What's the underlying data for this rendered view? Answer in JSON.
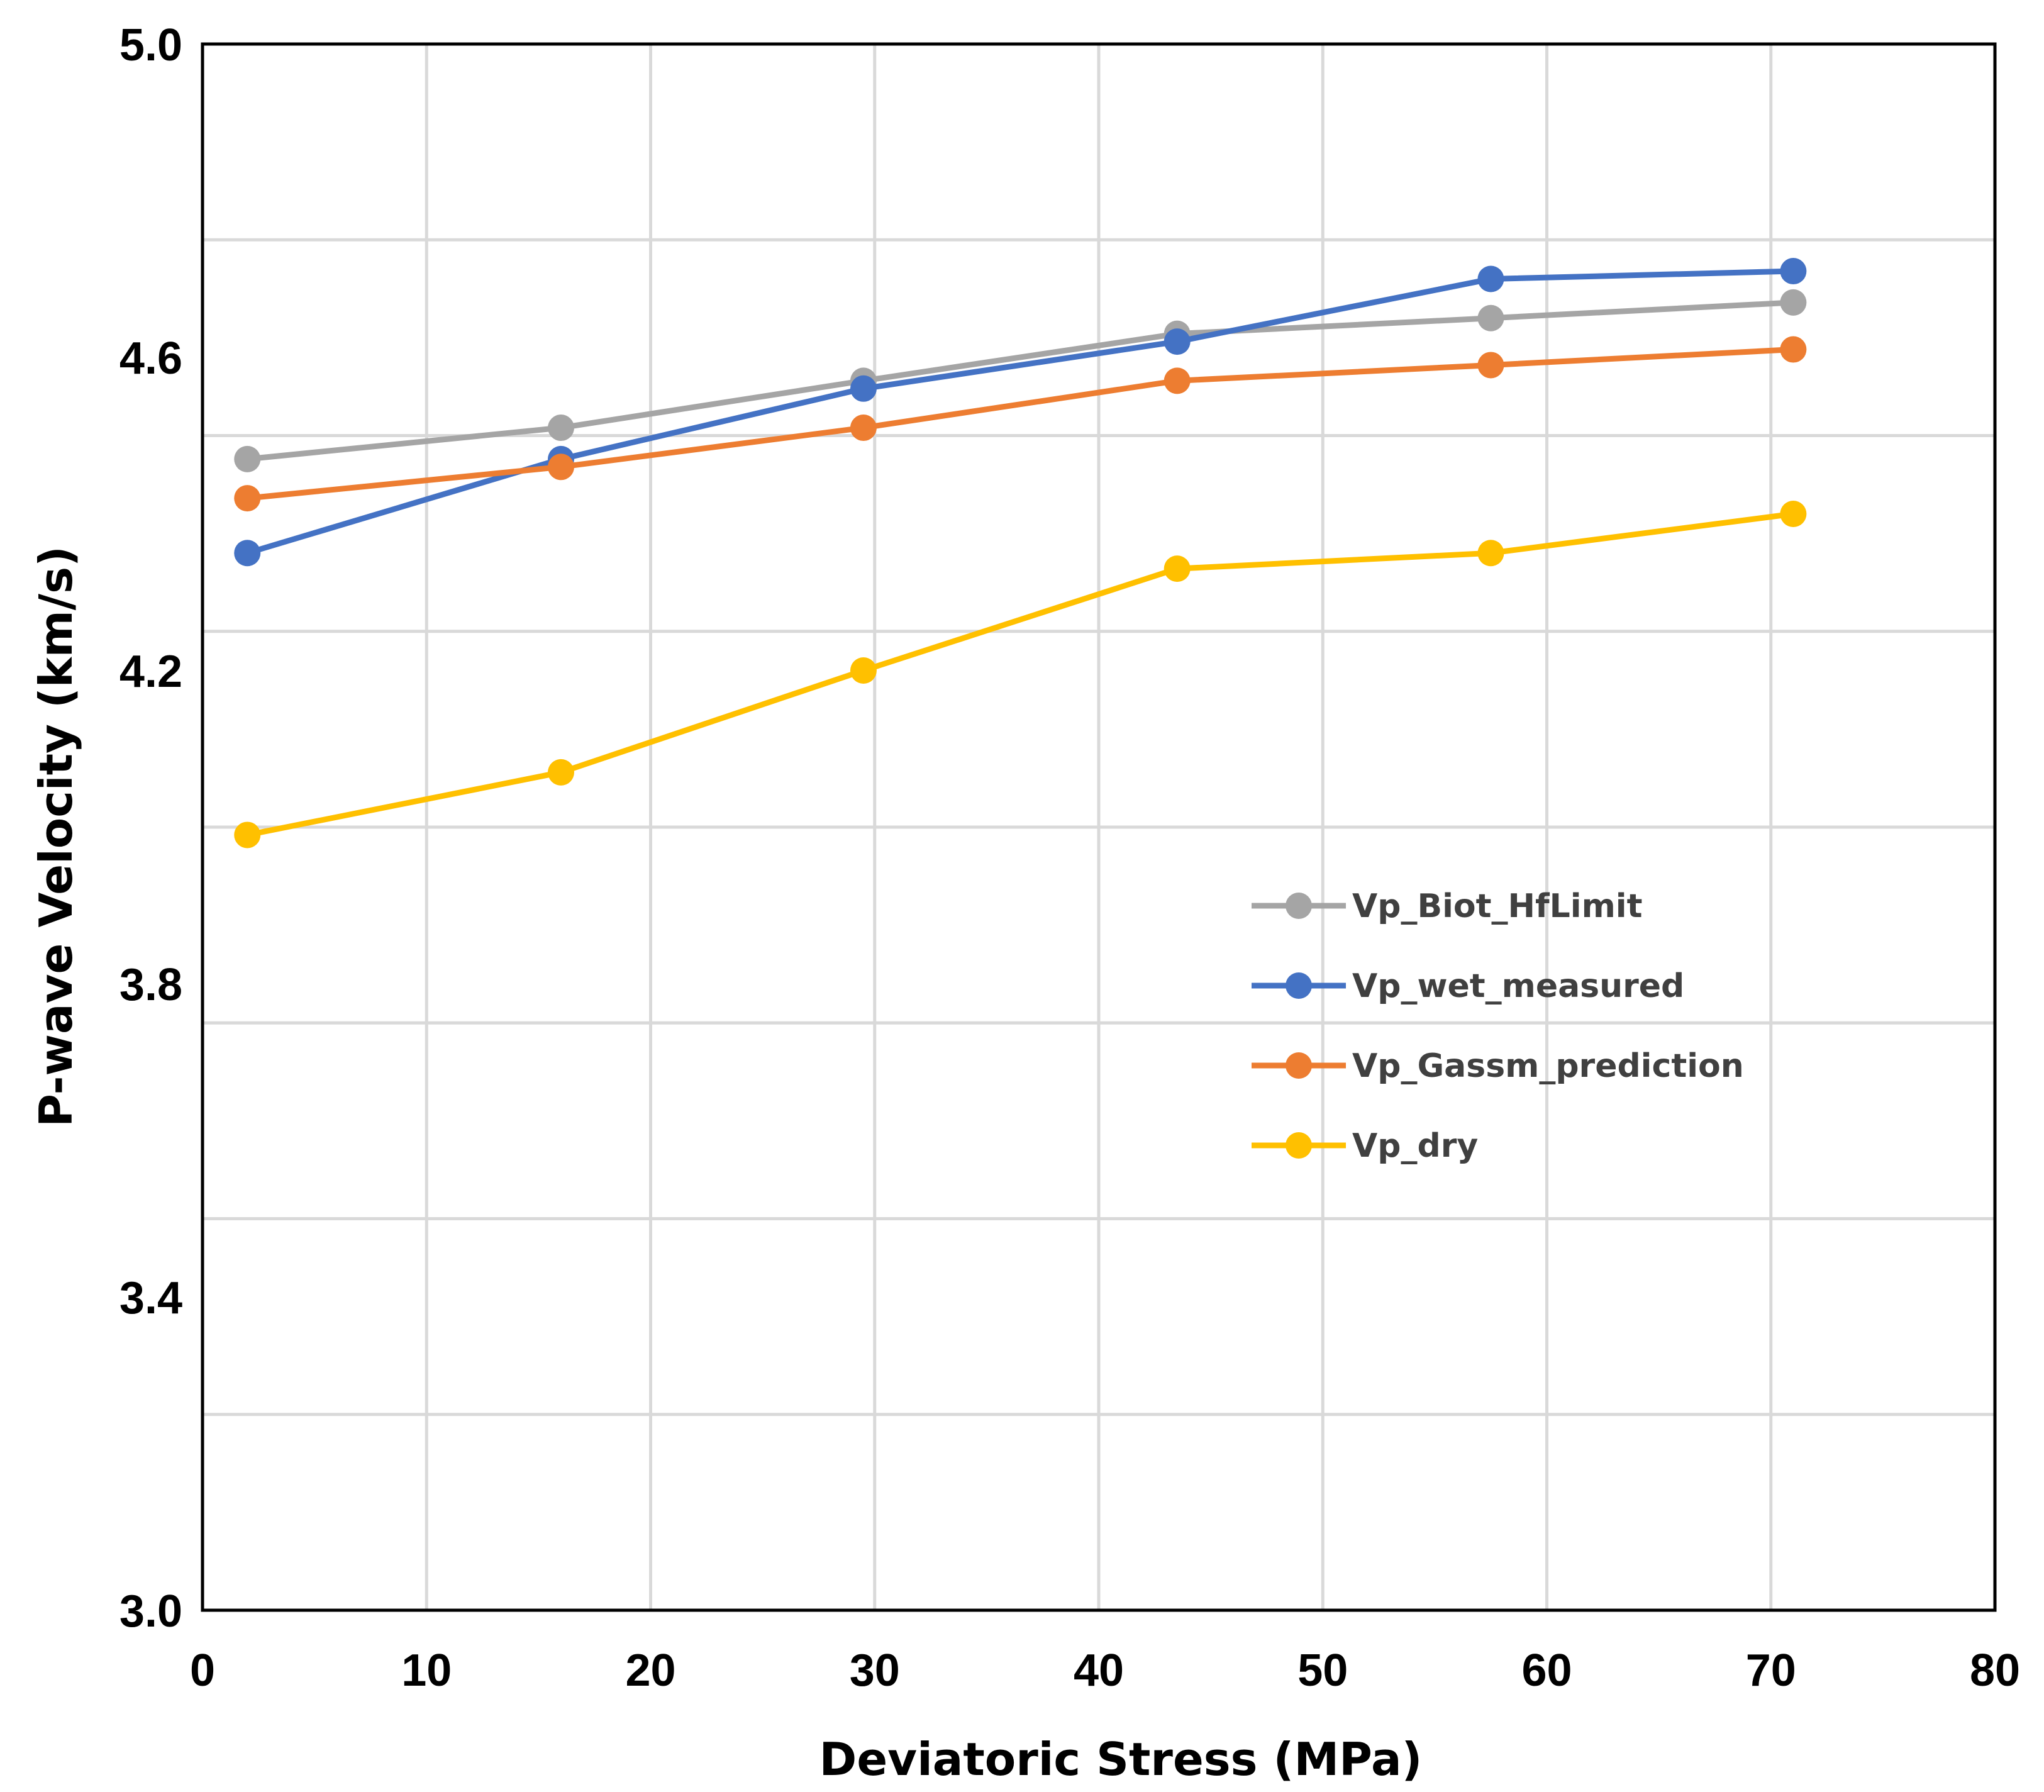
{
  "chart_data": {
    "type": "line",
    "title": "",
    "xlabel": "Deviatoric Stress (MPa)",
    "ylabel": "P-wave Velocity (km/s)",
    "xlim": [
      0,
      80
    ],
    "ylim": [
      3.0,
      5.0
    ],
    "x_ticks": [
      "0",
      "10",
      "20",
      "30",
      "40",
      "50",
      "60",
      "70",
      "80"
    ],
    "y_ticks": [
      "3.0",
      "3.4",
      "3.8",
      "4.2",
      "4.6",
      "5.0"
    ],
    "grid": true,
    "legend_position": "center-right",
    "x": [
      2,
      16,
      29.5,
      43.5,
      57.5,
      71
    ],
    "series": [
      {
        "name": "Vp_Biot_HfLimit",
        "color": "#A5A5A5",
        "values": [
          4.47,
          4.51,
          4.57,
          4.63,
          4.65,
          4.67
        ]
      },
      {
        "name": "Vp_wet_measured",
        "color": "#4472C4",
        "values": [
          4.35,
          4.47,
          4.56,
          4.62,
          4.7,
          4.71
        ]
      },
      {
        "name": "Vp_Gassm_prediction",
        "color": "#ED7D31",
        "values": [
          4.42,
          4.46,
          4.51,
          4.57,
          4.59,
          4.61
        ]
      },
      {
        "name": "Vp_dry",
        "color": "#FFC000",
        "values": [
          3.99,
          4.07,
          4.2,
          4.33,
          4.35,
          4.4
        ]
      }
    ]
  }
}
